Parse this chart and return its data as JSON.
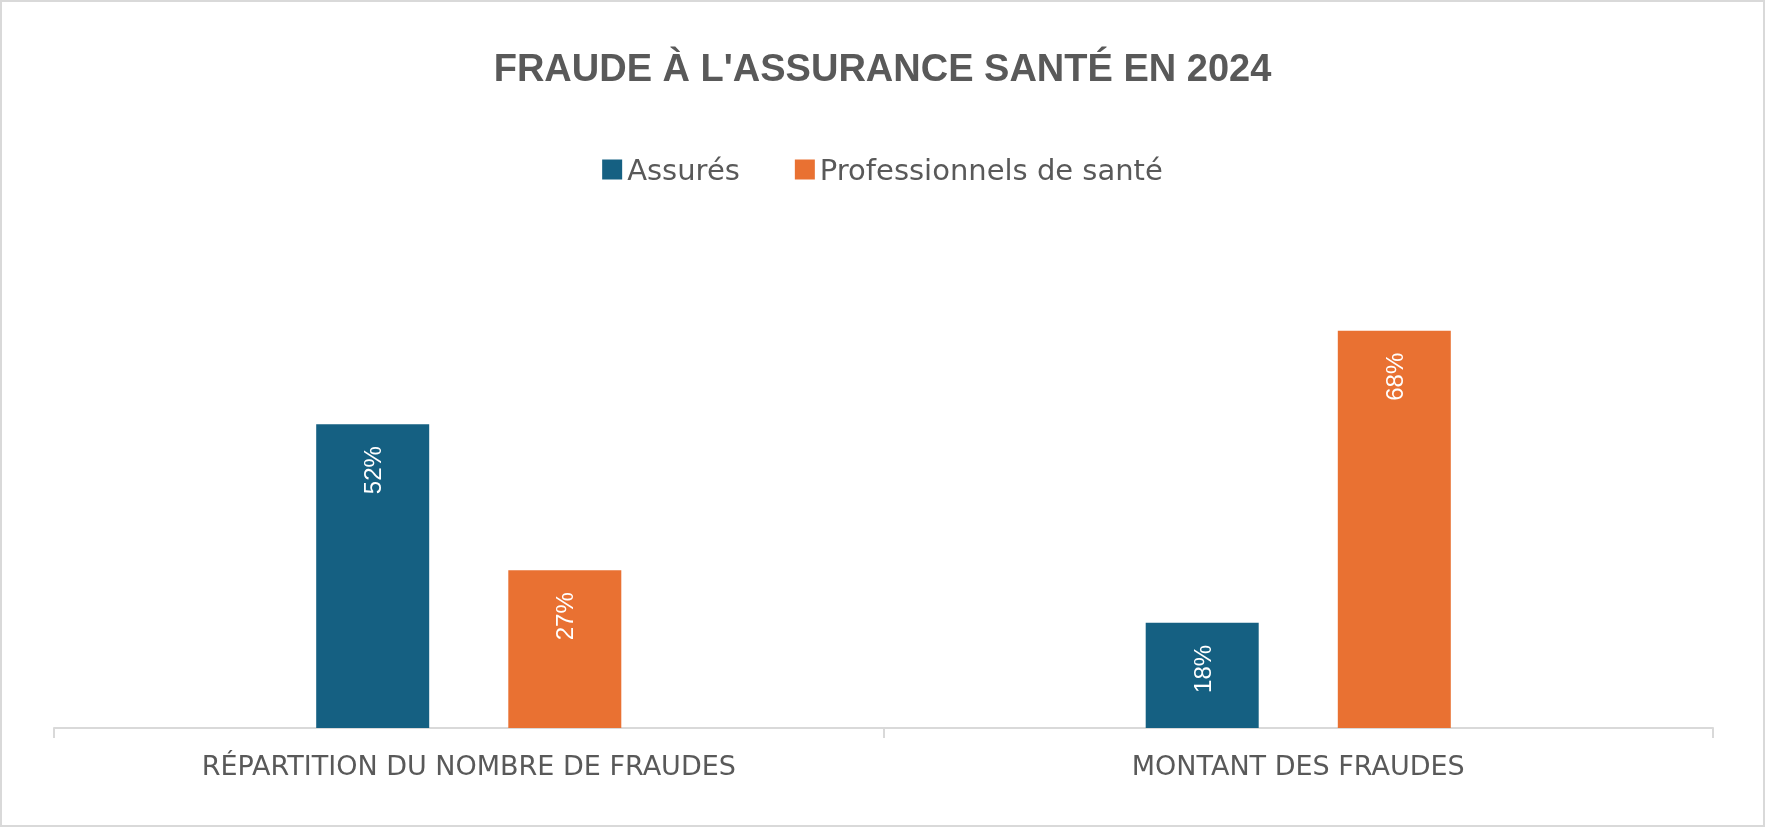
{
  "chart_data": {
    "type": "bar",
    "title": "FRAUDE À L'ASSURANCE SANTÉ EN 2024",
    "categories": [
      "RÉPARTITION DU NOMBRE DE FRAUDES",
      "MONTANT DES FRAUDES"
    ],
    "series": [
      {
        "name": "Assurés",
        "color": "#156082",
        "values": [
          52,
          18
        ],
        "value_labels": [
          "52%",
          "18%"
        ]
      },
      {
        "name": "Professionnels de santé",
        "color": "#e97132",
        "values": [
          27,
          68
        ],
        "value_labels": [
          "27%",
          "68%"
        ]
      }
    ],
    "legend": "top"
  }
}
